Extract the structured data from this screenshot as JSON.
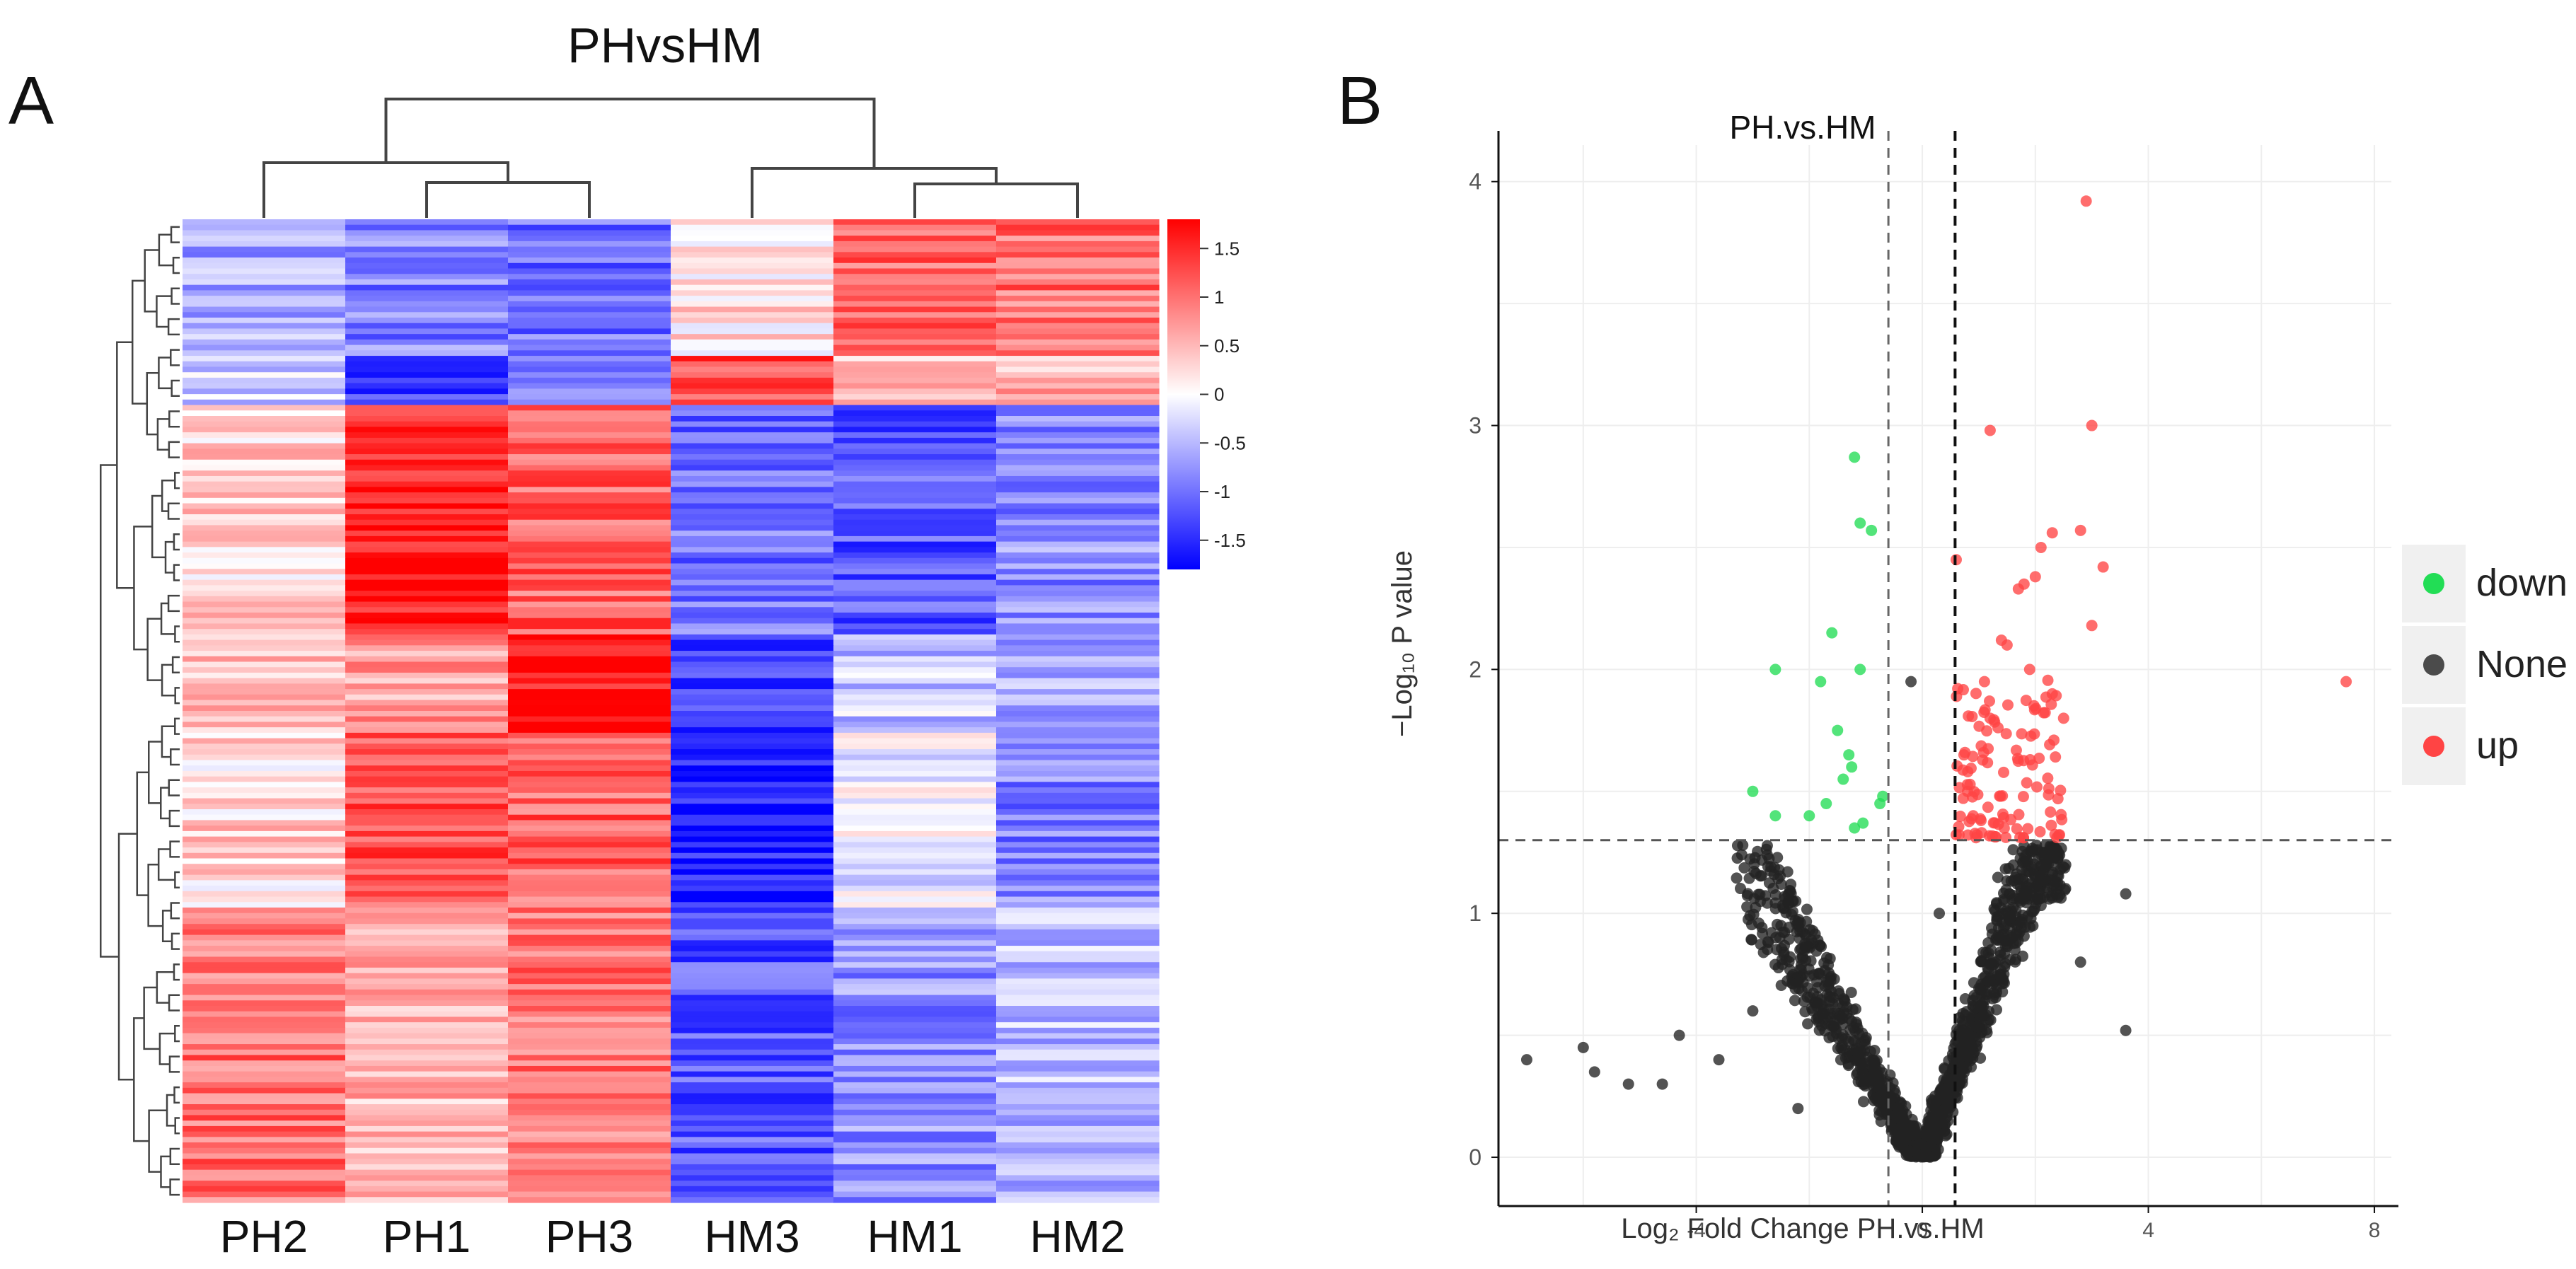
{
  "panels": {
    "a_label": "A",
    "b_label": "B"
  },
  "colors": {
    "heat_high": "#ff0000",
    "heat_mid": "#ffffff",
    "heat_low": "#0000ff",
    "down": "#22dd55",
    "none": "#222222",
    "up": "#ff4444"
  },
  "chart_data": [
    {
      "type": "heatmap",
      "title": "PHvsHM",
      "columns": [
        "PH2",
        "PH1",
        "PH3",
        "HM3",
        "HM1",
        "HM2"
      ],
      "color_scale": {
        "ticks": [
          1.5,
          1,
          0.5,
          0,
          -0.5,
          -1,
          -1.5
        ],
        "tick_labels": [
          "1.5",
          "1",
          "0.5",
          "0",
          "-0.5",
          "-1",
          "-1.5"
        ],
        "range": [
          -1.8,
          1.8
        ]
      },
      "dendrogram": {
        "column_order": [
          "PH2",
          "PH1",
          "PH3",
          "HM3",
          "HM1",
          "HM2"
        ],
        "merges": [
          [
            "PH1",
            "PH3"
          ],
          [
            "PH2",
            "PH1+PH3"
          ],
          [
            "HM1",
            "HM2"
          ],
          [
            "HM3",
            "HM1+HM2"
          ],
          [
            "PH",
            "HM"
          ]
        ]
      },
      "row_blocks": [
        {
          "label": "block-1",
          "rows_fraction": 0.14,
          "values": [
            -0.6,
            -0.9,
            -1.0,
            0.2,
            1.1,
            1.0
          ]
        },
        {
          "label": "block-2",
          "rows_fraction": 0.05,
          "values": [
            -0.3,
            -1.3,
            -1.0,
            1.3,
            0.4,
            0.6
          ]
        },
        {
          "label": "block-3",
          "rows_fraction": 0.23,
          "values": [
            0.3,
            1.6,
            1.1,
            -1.0,
            -1.2,
            -0.8
          ]
        },
        {
          "label": "block-4",
          "rows_fraction": 0.1,
          "values": [
            0.4,
            0.7,
            1.7,
            -1.4,
            -0.4,
            -0.6
          ]
        },
        {
          "label": "block-5",
          "rows_fraction": 0.18,
          "values": [
            0.3,
            1.2,
            1.1,
            -1.6,
            -0.1,
            -0.9
          ]
        },
        {
          "label": "block-6",
          "rows_fraction": 0.3,
          "values": [
            1.0,
            0.5,
            1.0,
            -1.2,
            -0.8,
            -0.5
          ]
        }
      ]
    },
    {
      "type": "scatter",
      "title": "PH.vs.HM",
      "xlabel": "Log₂ Fold Change PH.vs.HM",
      "ylabel": "−Log₁₀ P value",
      "xlim": [
        -7.5,
        8.3
      ],
      "ylim": [
        -0.2,
        4.15
      ],
      "xticks": [
        -4,
        0,
        4,
        8
      ],
      "xtick_labels": [
        "-4",
        "0",
        "4",
        "8"
      ],
      "yticks": [
        0,
        1,
        2,
        3,
        4
      ],
      "ytick_labels": [
        "0",
        "1",
        "2",
        "3",
        "4"
      ],
      "thresholds": {
        "p_line": 1.3,
        "fc_lines": [
          -0.6,
          0.58
        ]
      },
      "legend": {
        "position": "right",
        "entries": [
          "down",
          "None",
          "up"
        ]
      },
      "series": [
        {
          "name": "down",
          "points": [
            [
              -1.2,
              2.87
            ],
            [
              -1.1,
              2.6
            ],
            [
              -0.9,
              2.57
            ],
            [
              -2.6,
              2.0
            ],
            [
              -1.6,
              2.15
            ],
            [
              -1.8,
              1.95
            ],
            [
              -1.1,
              2.0
            ],
            [
              -1.5,
              1.75
            ],
            [
              -1.3,
              1.65
            ],
            [
              -1.25,
              1.6
            ],
            [
              -3.0,
              1.5
            ],
            [
              -2.6,
              1.4
            ],
            [
              -2.0,
              1.4
            ],
            [
              -1.7,
              1.45
            ],
            [
              -1.2,
              1.35
            ],
            [
              -1.05,
              1.37
            ],
            [
              -0.75,
              1.45
            ],
            [
              -0.7,
              1.48
            ],
            [
              -1.4,
              1.55
            ]
          ]
        },
        {
          "name": "up",
          "points": [
            [
              2.9,
              3.92
            ],
            [
              3.0,
              3.0
            ],
            [
              1.2,
              2.98
            ],
            [
              0.6,
              2.45
            ],
            [
              2.8,
              2.57
            ],
            [
              2.3,
              2.56
            ],
            [
              2.1,
              2.5
            ],
            [
              3.2,
              2.42
            ],
            [
              1.8,
              2.35
            ],
            [
              1.7,
              2.33
            ],
            [
              2.0,
              2.38
            ],
            [
              3.0,
              2.18
            ],
            [
              7.5,
              1.95
            ],
            [
              1.4,
              2.12
            ],
            [
              1.5,
              2.1
            ],
            [
              1.1,
              1.95
            ],
            [
              1.9,
              2.0
            ],
            [
              2.5,
              1.8
            ],
            [
              2.3,
              1.9
            ],
            [
              1.2,
              1.8
            ],
            [
              2.4,
              1.47
            ],
            [
              0.8,
              1.5
            ],
            [
              0.9,
              1.4
            ]
          ]
        },
        {
          "name": "None",
          "points": [
            [
              -7.0,
              0.4
            ],
            [
              -6.0,
              0.45
            ],
            [
              -5.2,
              0.3
            ],
            [
              -4.3,
              0.5
            ],
            [
              -3.6,
              0.4
            ],
            [
              -2.5,
              0.95
            ],
            [
              -3.0,
              0.6
            ],
            [
              0.3,
              1.0
            ],
            [
              3.6,
              0.52
            ],
            [
              3.6,
              1.08
            ],
            [
              -5.8,
              0.35
            ],
            [
              -4.6,
              0.3
            ],
            [
              -2.2,
              0.2
            ],
            [
              2.8,
              0.8
            ],
            [
              -0.2,
              1.95
            ]
          ]
        }
      ]
    }
  ]
}
